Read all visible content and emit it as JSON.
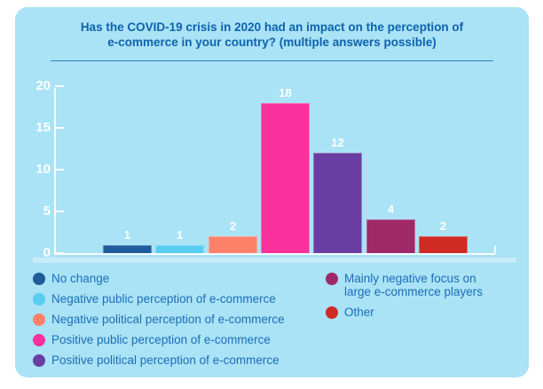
{
  "styles": {
    "page_bg": "#ffffff",
    "card_bg": "#aae2f6",
    "title_color": "#0d63ad",
    "underline_color": "#2e80c1",
    "legend_text_color": "#1b6fb7",
    "axis_color": "#ffffff",
    "tick_label_color": "#ffffff",
    "bar_value_label_color": "#ffffff"
  },
  "title": {
    "line1": "Has the COVID-19 crisis in 2020 had an impact on the perception of",
    "line2": "e-commerce in your country? (multiple answers possible)"
  },
  "chart_data": {
    "type": "bar",
    "title": "Has the COVID-19 crisis in 2020 had an impact on the perception of e-commerce in your country? (multiple answers possible)",
    "categories": [
      "No change",
      "Negative public perception of e-commerce",
      "Negative political perception of e-commerce",
      "Positive public perception of e-commerce",
      "Positive political perception of e-commerce",
      "Mainly negative focus on large e-commerce players",
      "Other"
    ],
    "values": [
      1,
      1,
      2,
      18,
      12,
      4,
      2
    ],
    "bar_colors": [
      "#1e5c9b",
      "#58cdf1",
      "#fb8169",
      "#f8319c",
      "#6a3da3",
      "#9f2968",
      "#d02a25"
    ],
    "xlabel": "",
    "ylabel": "",
    "ylim": [
      0,
      20
    ],
    "yticks": [
      0,
      5,
      10,
      15,
      20
    ],
    "grid": false,
    "bar_labels_shown": true,
    "legend_position": "bottom"
  },
  "legend": {
    "columns": [
      [
        {
          "label": "No change",
          "color": "#1e5c9b"
        },
        {
          "label": "Negative public perception of e-commerce",
          "color": "#58cdf1"
        },
        {
          "label": "Negative political perception of e-commerce",
          "color": "#fb8169"
        },
        {
          "label": "Positive public perception of e-commerce",
          "color": "#f8319c"
        },
        {
          "label": "Positive political perception of e-commerce",
          "color": "#6a3da3"
        }
      ],
      [
        {
          "label": "Mainly negative focus on large e-commerce players",
          "color": "#9f2968"
        },
        {
          "label": "Other",
          "color": "#d02a25"
        }
      ]
    ]
  }
}
